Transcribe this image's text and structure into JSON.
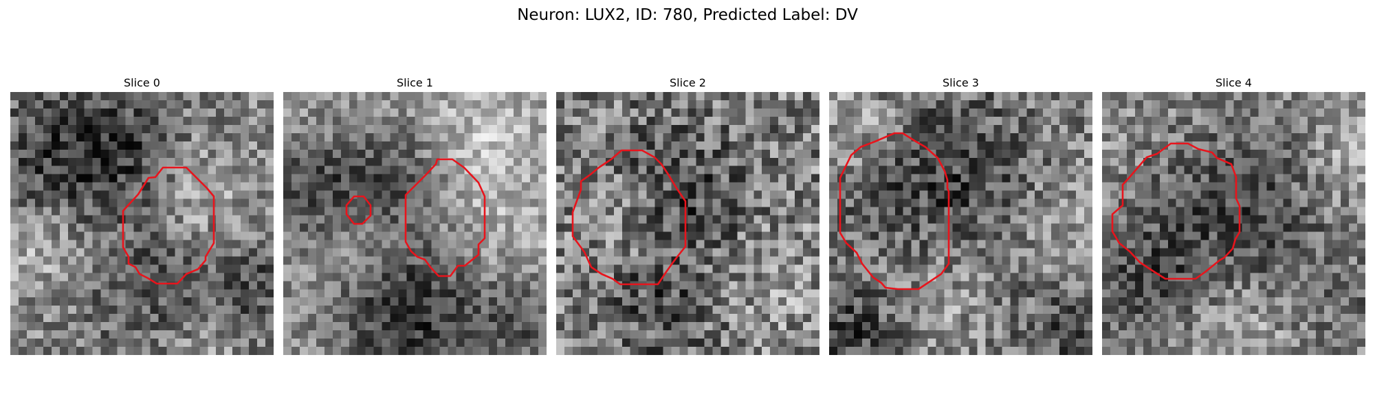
{
  "figure": {
    "suptitle": "Neuron: LUX2, ID: 780, Predicted Label: DV"
  },
  "panels": [
    {
      "title": "Slice 0"
    },
    {
      "title": "Slice 1"
    },
    {
      "title": "Slice 2"
    },
    {
      "title": "Slice 3"
    },
    {
      "title": "Slice 4"
    }
  ],
  "colors": {
    "contour": "#e8141c"
  }
}
